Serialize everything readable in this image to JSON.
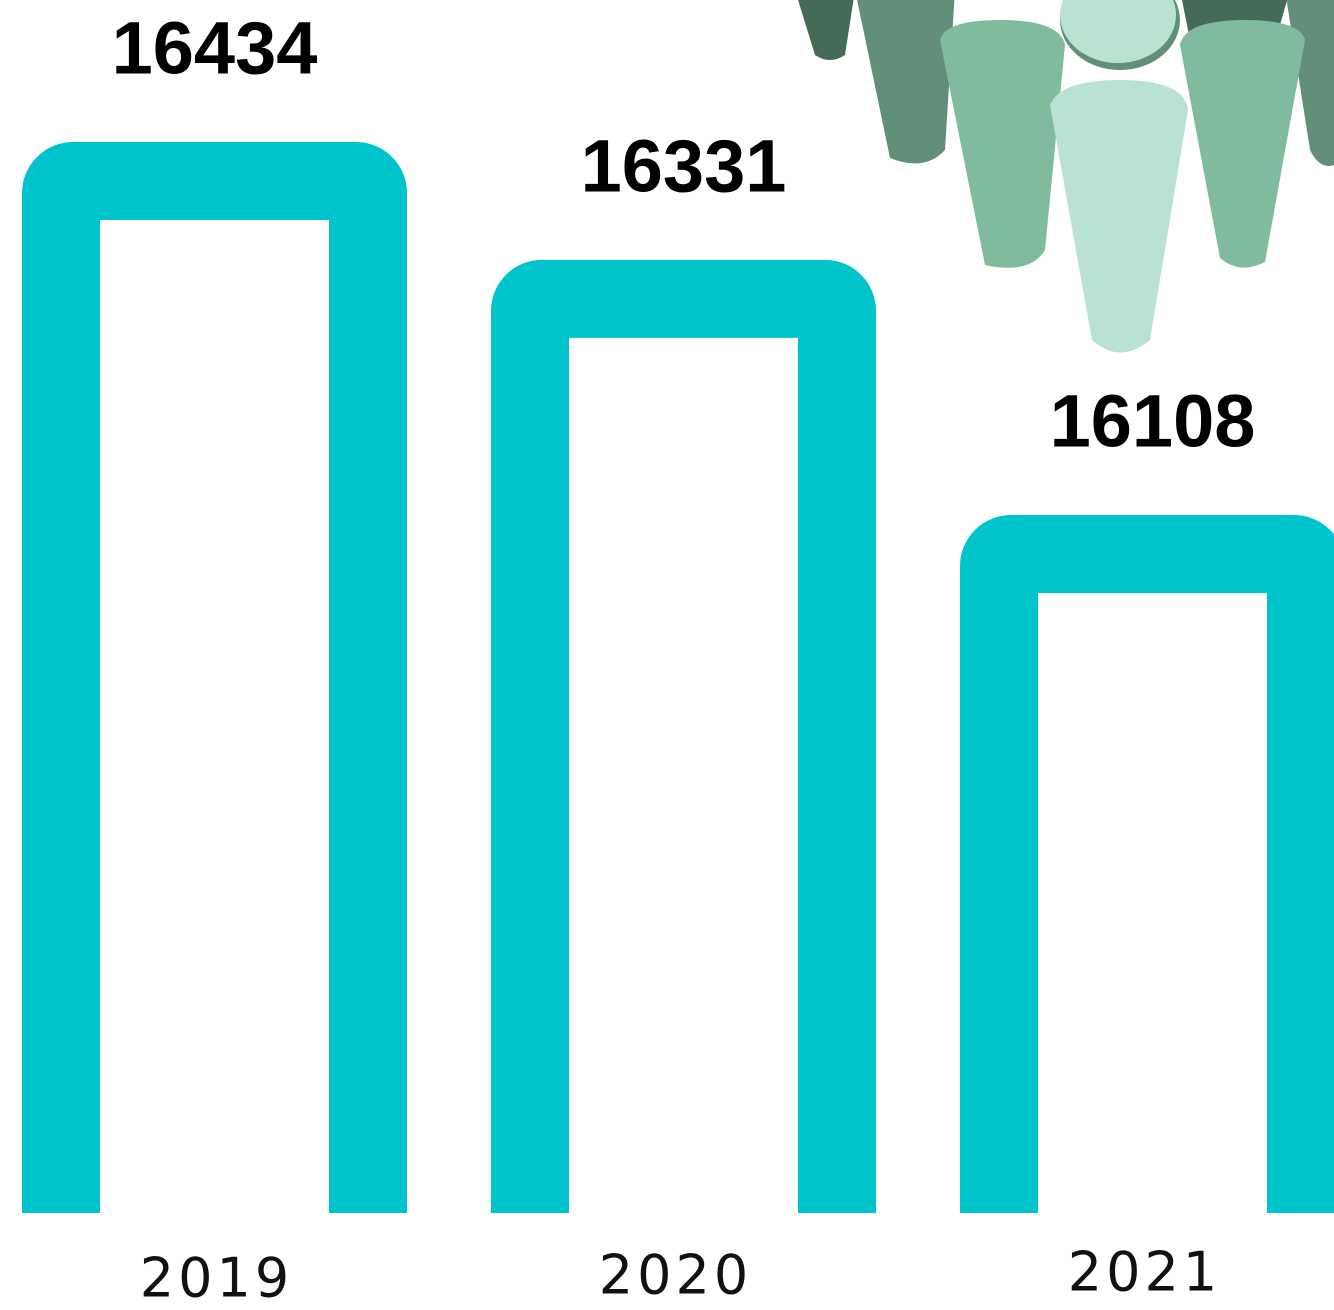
{
  "chart_data": {
    "type": "bar",
    "categories": [
      "2019",
      "2020",
      "2021"
    ],
    "values": [
      16434,
      16331,
      16108
    ],
    "color": "#00c4cc"
  }
}
